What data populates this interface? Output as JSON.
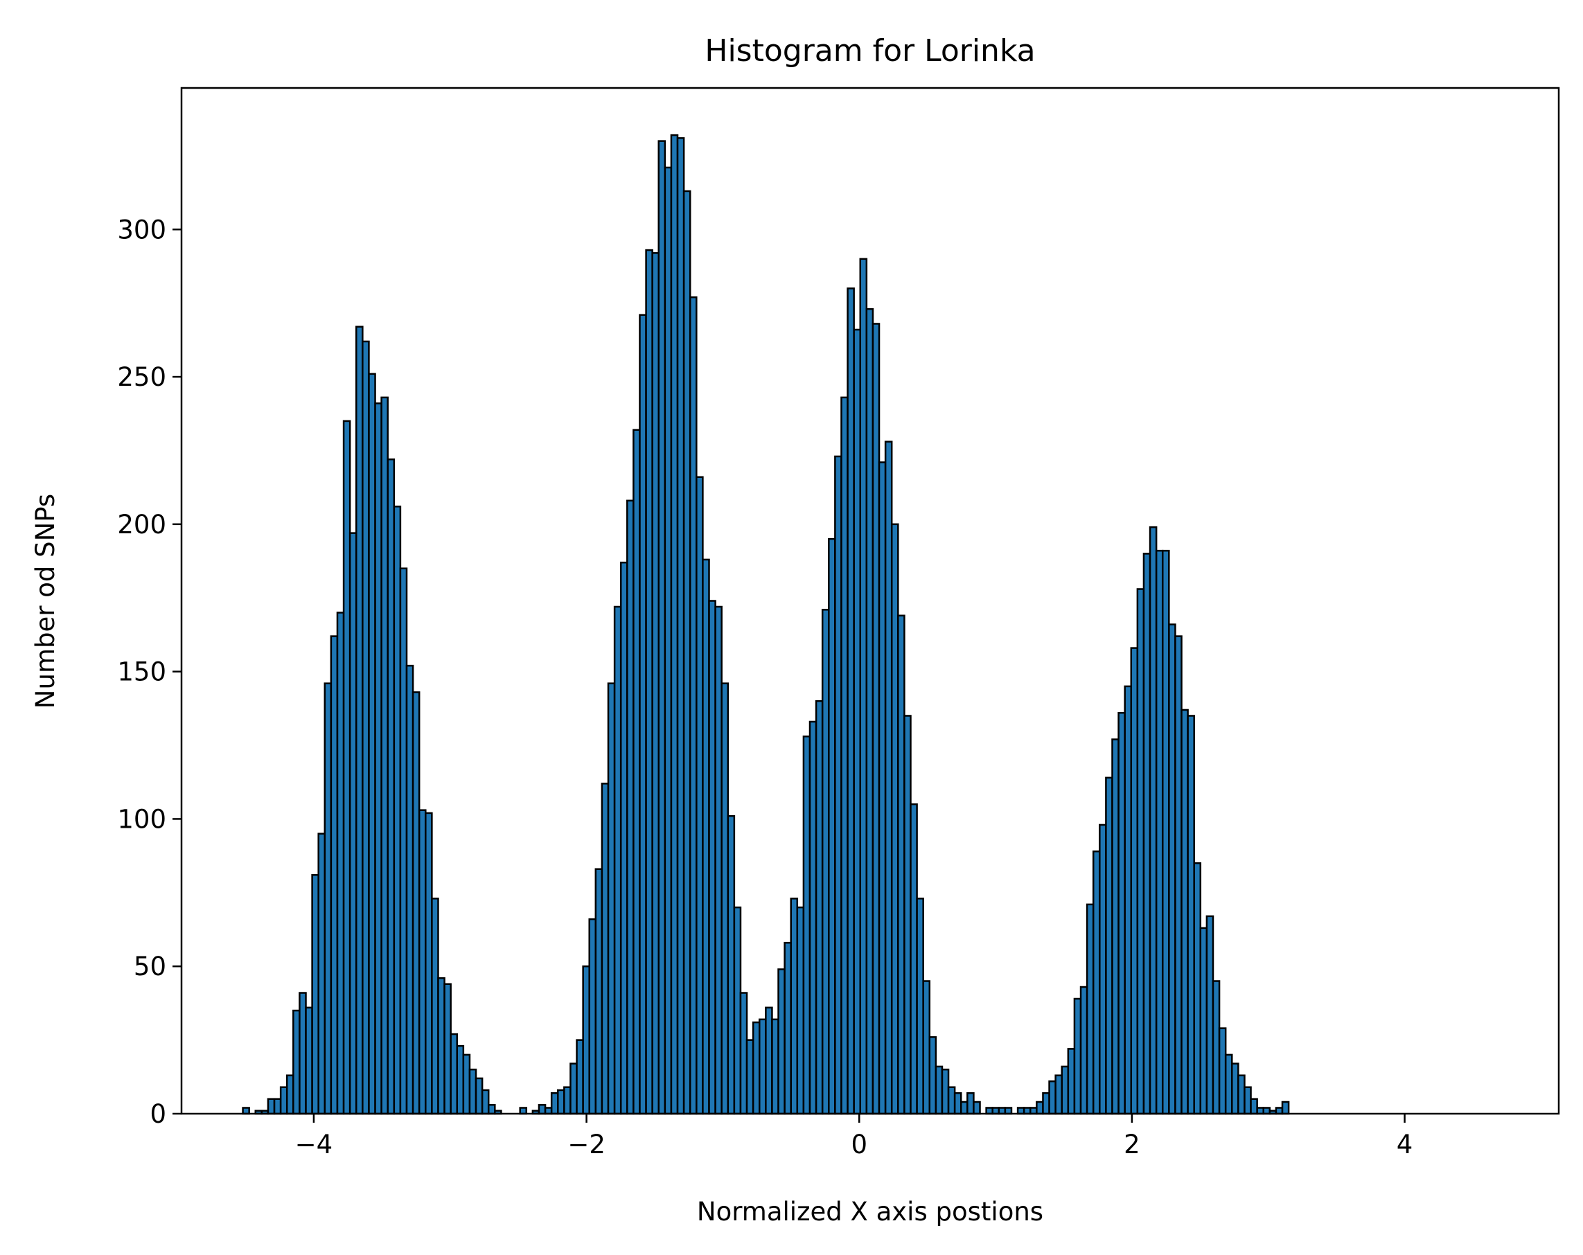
{
  "chart_data": {
    "type": "bar",
    "title": "Histogram for Lorinka",
    "xlabel": "Normalized X axis postions",
    "ylabel": "Number od SNPs",
    "xlim": [
      -4.97,
      5.13
    ],
    "ylim": [
      0,
      348
    ],
    "xticks": [
      -4,
      -2,
      0,
      2,
      4
    ],
    "xtick_labels": [
      "−4",
      "−2",
      "0",
      "2",
      "4"
    ],
    "yticks": [
      0,
      50,
      100,
      150,
      200,
      250,
      300
    ],
    "ytick_labels": [
      "0",
      "50",
      "100",
      "150",
      "200",
      "250",
      "300"
    ],
    "grid": false,
    "bar_color": "#1f77b4",
    "edge_color": "#000000",
    "bin_start": -4.52,
    "bin_width": 0.0462,
    "counts": [
      2,
      0,
      1,
      1,
      5,
      5,
      9,
      13,
      35,
      41,
      36,
      81,
      95,
      146,
      162,
      170,
      235,
      197,
      267,
      262,
      251,
      241,
      243,
      222,
      206,
      185,
      152,
      143,
      103,
      102,
      73,
      46,
      44,
      27,
      23,
      20,
      15,
      12,
      8,
      3,
      1,
      0,
      0,
      0,
      2,
      0,
      1,
      3,
      2,
      7,
      8,
      9,
      17,
      25,
      50,
      66,
      83,
      112,
      146,
      172,
      187,
      208,
      232,
      271,
      293,
      292,
      330,
      321,
      332,
      331,
      313,
      277,
      216,
      188,
      174,
      172,
      146,
      101,
      70,
      41,
      25,
      31,
      32,
      36,
      32,
      49,
      58,
      73,
      70,
      128,
      133,
      140,
      171,
      195,
      223,
      243,
      280,
      266,
      290,
      273,
      268,
      221,
      228,
      200,
      169,
      135,
      105,
      73,
      45,
      26,
      16,
      15,
      9,
      7,
      4,
      7,
      4,
      0,
      2,
      2,
      2,
      2,
      0,
      2,
      2,
      2,
      4,
      7,
      11,
      13,
      16,
      22,
      39,
      43,
      71,
      89,
      98,
      114,
      127,
      136,
      145,
      158,
      178,
      190,
      199,
      191,
      191,
      166,
      162,
      137,
      135,
      85,
      63,
      67,
      45,
      29,
      20,
      17,
      13,
      9,
      5,
      2,
      2,
      1,
      2,
      4
    ]
  }
}
